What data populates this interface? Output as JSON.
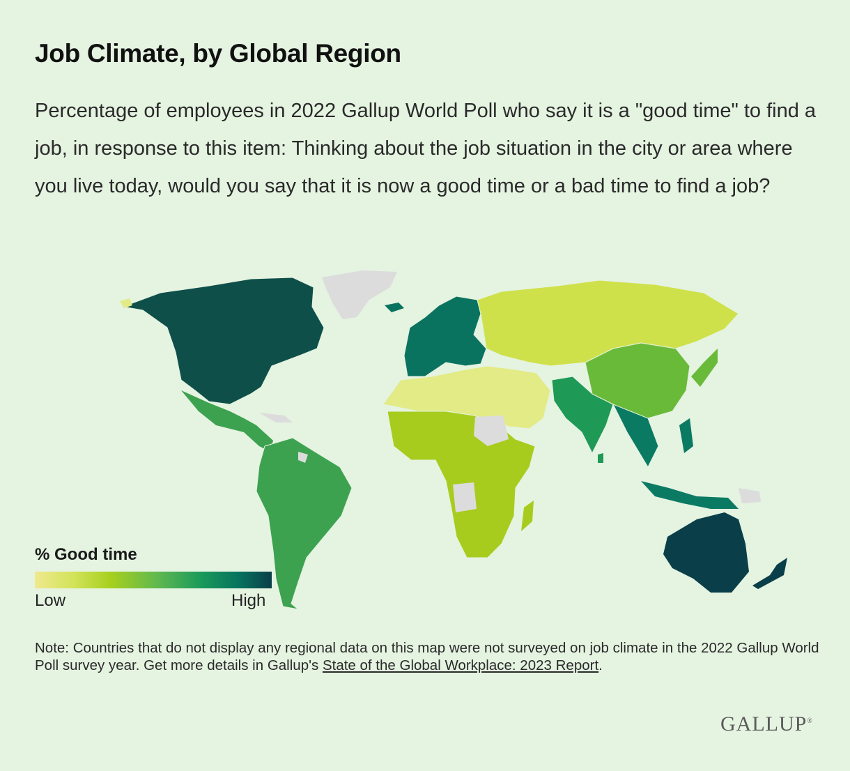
{
  "header": {
    "title": "Job Climate, by Global Region",
    "subtitle": "Percentage of employees in 2022 Gallup World Poll who say it is a \"good time\" to find a job, in response to this item: Thinking about the job situation in the city or area where you live today, would you say that it is now a good time or a bad time to find a job?"
  },
  "legend": {
    "title": "% Good time",
    "low_label": "Low",
    "high_label": "High",
    "gradient_colors": [
      "#efe98f",
      "#d3e35a",
      "#a7d01e",
      "#5fb84f",
      "#1a9a5a",
      "#07735e",
      "#0a3f49"
    ]
  },
  "map": {
    "not_surveyed_color": "#dcdcdc",
    "regions": [
      {
        "name": "North America",
        "level": "high",
        "color": "#0e4f4a"
      },
      {
        "name": "Latin America",
        "level": "mid-high",
        "color": "#3da24f"
      },
      {
        "name": "Europe",
        "level": "high",
        "color": "#0a7360"
      },
      {
        "name": "Former Soviet states",
        "level": "low",
        "color": "#cfe14a"
      },
      {
        "name": "Middle East and North Africa",
        "level": "lowest",
        "color": "#e2eb85"
      },
      {
        "name": "Sub-Saharan Africa",
        "level": "mid-low",
        "color": "#a8cc1e"
      },
      {
        "name": "South Asia",
        "level": "mid-high",
        "color": "#1e9a56"
      },
      {
        "name": "East Asia",
        "level": "mid",
        "color": "#6aba3a"
      },
      {
        "name": "Southeast Asia",
        "level": "high",
        "color": "#0b7a63"
      },
      {
        "name": "Australia and New Zealand",
        "level": "highest",
        "color": "#0a3f49"
      }
    ]
  },
  "note": {
    "text": "Note: Countries that do not display any regional data on this map were not surveyed on job climate in the 2022 Gallup World Poll survey year. Get more details in Gallup's ",
    "link_text": "State of the Global Workplace: 2023 Report",
    "end": "."
  },
  "brand": {
    "logo": "GALLUP"
  }
}
